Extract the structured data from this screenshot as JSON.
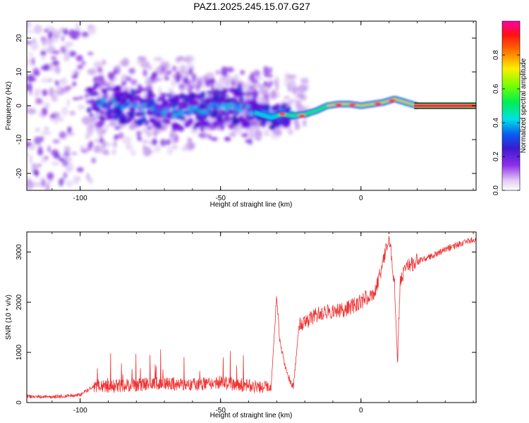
{
  "title": "PAZ1.2025.245.15.07.G27",
  "colors": {
    "snr_line": "#ee3333",
    "band_core": "#ff2266",
    "axis": "#000000"
  },
  "chart_data": [
    {
      "type": "heatmap",
      "xlabel": "Height of straight line (km)",
      "ylabel": "Frequency (Hz)",
      "xlim": [
        -119,
        41
      ],
      "ylim": [
        -25,
        25
      ],
      "xticks": [
        -100,
        -50,
        0
      ],
      "xtick_labels": [
        "-100",
        "-50",
        "0"
      ],
      "yticks": [
        -20,
        -10,
        0,
        10,
        20
      ],
      "ytick_labels": [
        "-20",
        "-10",
        "0",
        "10",
        "20"
      ],
      "colorbar": {
        "label": "Normalized spectral amplitude",
        "range": [
          0,
          1
        ],
        "ticks": [
          0.0,
          0.2,
          0.4,
          0.6,
          0.8
        ],
        "tick_labels": [
          "0.0",
          "0.2",
          "0.4",
          "0.6",
          "0.8"
        ],
        "colormap": "white-purple-blue-cyan-green-yellow-red-magenta"
      },
      "ridge": {
        "x": [
          -95,
          -85,
          -75,
          -65,
          -55,
          -45,
          -38,
          -32,
          -28,
          -24,
          -20,
          -16,
          -12,
          -8,
          -4,
          0,
          4,
          8,
          12,
          16,
          20,
          41
        ],
        "y": [
          1.5,
          0,
          -1,
          -2,
          -1,
          0,
          -2,
          -3.5,
          -2.5,
          -3,
          -2.5,
          -1.5,
          0,
          0.5,
          0.5,
          0,
          0.5,
          1,
          2,
          1,
          0,
          0
        ]
      }
    },
    {
      "type": "line",
      "xlabel": "Height of straight line (km)",
      "ylabel": "SNR (10 * v/v)",
      "xlim": [
        -119,
        41
      ],
      "ylim": [
        0,
        3400
      ],
      "xticks": [
        -100,
        -50,
        0
      ],
      "xtick_labels": [
        "-100",
        "-50",
        "0"
      ],
      "yticks": [
        0,
        1000,
        2000,
        3000
      ],
      "ytick_labels": [
        "0",
        "1000",
        "2000",
        "3000"
      ],
      "series": [
        {
          "x": [
            -119,
            -110,
            -100,
            -95,
            -90,
            -80,
            -70,
            -60,
            -50,
            -40,
            -35,
            -32,
            -31,
            -30,
            -29,
            -27,
            -25,
            -24,
            -22,
            -20,
            -15,
            -10,
            -5,
            0,
            5,
            8,
            10,
            12,
            13,
            14,
            16,
            20,
            25,
            30,
            35,
            41
          ],
          "y": [
            120,
            110,
            150,
            330,
            300,
            340,
            370,
            340,
            390,
            320,
            290,
            330,
            1200,
            2150,
            1250,
            700,
            380,
            330,
            1550,
            1600,
            1750,
            1800,
            1850,
            2000,
            2200,
            2800,
            3350,
            2300,
            800,
            2400,
            2700,
            2800,
            2900,
            3050,
            3150,
            3250
          ]
        }
      ]
    }
  ]
}
